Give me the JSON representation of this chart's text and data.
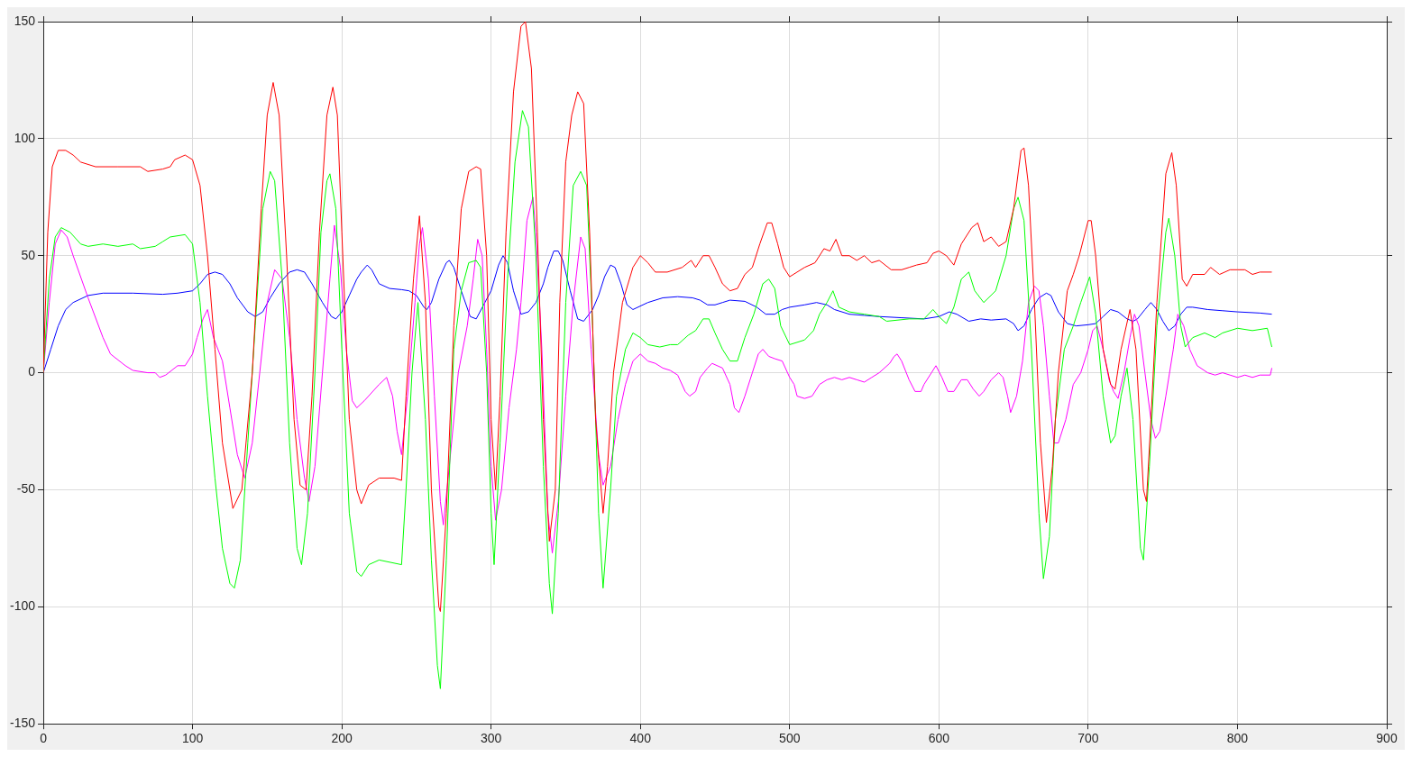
{
  "chart_data": {
    "type": "line",
    "xlim": [
      0,
      900
    ],
    "xticks": [
      0,
      100,
      200,
      300,
      400,
      500,
      600,
      700,
      800,
      900
    ],
    "ylim": [
      -150,
      150
    ],
    "yticks": [
      -150,
      -100,
      -50,
      0,
      50,
      100,
      150
    ],
    "grid": true,
    "legend": false,
    "marker": "none",
    "line_style": "solid",
    "series": [
      {
        "color": "#ff0000",
        "x": [
          0,
          3,
          6,
          10,
          15,
          20,
          25,
          35,
          50,
          65,
          70,
          80,
          85,
          88,
          95,
          100,
          105,
          110,
          115,
          120,
          127,
          133,
          140,
          146,
          150,
          154,
          158,
          163,
          168,
          172,
          176,
          180,
          185,
          190,
          194,
          197,
          200,
          205,
          210,
          213,
          218,
          225,
          235,
          240,
          243,
          248,
          252,
          256,
          260,
          265,
          266,
          270,
          275,
          280,
          285,
          290,
          293,
          297,
          300,
          303,
          306,
          310,
          315,
          320,
          323,
          327,
          331,
          335,
          339,
          343,
          346,
          350,
          354,
          358,
          362,
          366,
          370,
          375,
          378,
          382,
          388,
          395,
          400,
          405,
          410,
          418,
          428,
          434,
          437,
          442,
          446,
          450,
          455,
          460,
          465,
          470,
          475,
          480,
          485,
          488,
          492,
          496,
          500,
          510,
          517,
          523,
          527,
          531,
          535,
          540,
          545,
          550,
          555,
          560,
          568,
          575,
          580,
          585,
          592,
          596,
          600,
          605,
          610,
          615,
          622,
          626,
          630,
          635,
          640,
          645,
          650,
          655,
          657,
          660,
          664,
          668,
          672,
          676,
          680,
          686,
          690,
          694,
          700,
          702,
          705,
          710,
          715,
          718,
          722,
          728,
          732,
          737,
          739,
          742,
          746,
          752,
          756,
          759,
          763,
          766,
          770,
          778,
          782,
          788,
          795,
          800,
          805,
          810,
          815,
          823
        ],
        "values": [
          0,
          60,
          88,
          95,
          95,
          93,
          90,
          88,
          88,
          88,
          86,
          87,
          88,
          91,
          93,
          91,
          80,
          50,
          10,
          -30,
          -58,
          -50,
          0,
          70,
          110,
          124,
          110,
          50,
          -20,
          -48,
          -50,
          -10,
          60,
          110,
          122,
          110,
          60,
          -20,
          -50,
          -56,
          -48,
          -45,
          -45,
          -46,
          -10,
          40,
          67,
          30,
          -50,
          -100,
          -102,
          -60,
          20,
          70,
          86,
          88,
          87,
          50,
          -20,
          -50,
          -10,
          60,
          120,
          148,
          150,
          130,
          60,
          -20,
          -72,
          -50,
          30,
          90,
          110,
          120,
          115,
          60,
          -20,
          -60,
          -40,
          0,
          30,
          45,
          50,
          47,
          43,
          43,
          45,
          48,
          45,
          50,
          50,
          45,
          38,
          35,
          36,
          42,
          45,
          55,
          64,
          64,
          55,
          45,
          41,
          45,
          47,
          53,
          52,
          57,
          50,
          50,
          48,
          50,
          47,
          48,
          44,
          44,
          45,
          46,
          47,
          51,
          52,
          50,
          46,
          55,
          62,
          64,
          56,
          58,
          54,
          56,
          70,
          95,
          96,
          80,
          30,
          -30,
          -64,
          -40,
          0,
          35,
          42,
          50,
          65,
          65,
          50,
          10,
          -5,
          -7,
          10,
          27,
          10,
          -50,
          -55,
          -20,
          30,
          85,
          94,
          80,
          40,
          37,
          42,
          42,
          45,
          42,
          44,
          44,
          44,
          42,
          43,
          43
        ]
      },
      {
        "color": "#00ff00",
        "x": [
          0,
          4,
          8,
          12,
          18,
          25,
          30,
          40,
          50,
          60,
          65,
          75,
          80,
          85,
          95,
          100,
          105,
          110,
          115,
          120,
          125,
          128,
          132,
          137,
          142,
          147,
          152,
          155,
          160,
          165,
          170,
          173,
          177,
          182,
          186,
          190,
          192,
          196,
          200,
          205,
          210,
          213,
          218,
          225,
          240,
          243,
          247,
          251,
          256,
          260,
          264,
          266,
          270,
          275,
          280,
          285,
          290,
          293,
          297,
          300,
          302,
          306,
          311,
          316,
          321,
          325,
          330,
          335,
          339,
          341,
          345,
          350,
          355,
          360,
          364,
          368,
          372,
          375,
          380,
          384,
          390,
          395,
          400,
          405,
          413,
          420,
          425,
          432,
          437,
          442,
          446,
          450,
          455,
          460,
          465,
          470,
          476,
          482,
          486,
          490,
          494,
          500,
          510,
          516,
          520,
          525,
          529,
          533,
          540,
          550,
          560,
          565,
          580,
          590,
          596,
          600,
          605,
          610,
          615,
          620,
          624,
          630,
          638,
          645,
          650,
          653,
          657,
          662,
          667,
          670,
          674,
          678,
          684,
          690,
          695,
          701,
          705,
          710,
          715,
          718,
          722,
          726,
          730,
          735,
          737,
          741,
          746,
          752,
          754,
          758,
          762,
          765,
          770,
          778,
          785,
          790,
          800,
          810,
          820,
          823
        ],
        "values": [
          0,
          40,
          58,
          62,
          60,
          55,
          54,
          55,
          54,
          55,
          53,
          54,
          56,
          58,
          59,
          55,
          30,
          -10,
          -45,
          -75,
          -90,
          -92,
          -80,
          -30,
          20,
          70,
          86,
          82,
          40,
          -30,
          -75,
          -82,
          -60,
          0,
          60,
          82,
          85,
          70,
          10,
          -60,
          -85,
          -87,
          -82,
          -80,
          -82,
          -50,
          0,
          30,
          -20,
          -80,
          -125,
          -135,
          -80,
          10,
          35,
          47,
          48,
          45,
          0,
          -60,
          -82,
          -30,
          40,
          90,
          112,
          105,
          50,
          -40,
          -90,
          -103,
          -60,
          30,
          80,
          86,
          80,
          20,
          -60,
          -92,
          -50,
          -10,
          10,
          17,
          15,
          12,
          11,
          12,
          12,
          16,
          18,
          23,
          23,
          17,
          10,
          5,
          5,
          15,
          25,
          38,
          40,
          36,
          20,
          12,
          14,
          18,
          25,
          30,
          35,
          28,
          26,
          25,
          24,
          22,
          23,
          23,
          27,
          24,
          21,
          28,
          40,
          43,
          35,
          30,
          35,
          50,
          70,
          75,
          65,
          10,
          -60,
          -88,
          -70,
          -20,
          10,
          20,
          30,
          41,
          25,
          -10,
          -30,
          -27,
          -10,
          2,
          -20,
          -75,
          -80,
          -40,
          20,
          60,
          66,
          50,
          20,
          11,
          15,
          17,
          15,
          17,
          19,
          18,
          19,
          11
        ]
      },
      {
        "color": "#ff00ff",
        "x": [
          0,
          4,
          8,
          12,
          16,
          20,
          30,
          40,
          45,
          55,
          60,
          70,
          75,
          78,
          82,
          90,
          95,
          100,
          103,
          107,
          110,
          114,
          120,
          125,
          130,
          135,
          140,
          145,
          150,
          155,
          160,
          165,
          170,
          175,
          178,
          182,
          187,
          192,
          195,
          199,
          203,
          207,
          210,
          215,
          225,
          230,
          234,
          237,
          240,
          244,
          249,
          252,
          254,
          258,
          262,
          266,
          268,
          272,
          278,
          284,
          288,
          291,
          294,
          297,
          300,
          303,
          307,
          312,
          317,
          320,
          324,
          328,
          330,
          334,
          338,
          341,
          345,
          350,
          355,
          360,
          363,
          367,
          372,
          375,
          380,
          385,
          390,
          395,
          400,
          405,
          410,
          415,
          420,
          425,
          430,
          433,
          437,
          440,
          445,
          448,
          455,
          460,
          463,
          466,
          470,
          475,
          479,
          482,
          486,
          490,
          495,
          500,
          503,
          505,
          510,
          515,
          520,
          525,
          530,
          535,
          540,
          545,
          550,
          555,
          560,
          567,
          570,
          572,
          575,
          580,
          584,
          588,
          590,
          595,
          598,
          602,
          606,
          610,
          615,
          619,
          623,
          627,
          630,
          635,
          640,
          643,
          646,
          648,
          652,
          656,
          660,
          664,
          667,
          670,
          674,
          677,
          680,
          685,
          690,
          695,
          700,
          703,
          706,
          710,
          714,
          717,
          720,
          724,
          728,
          731,
          734,
          738,
          742,
          745,
          748,
          752,
          757,
          760,
          764,
          768,
          773,
          780,
          785,
          790,
          795,
          800,
          805,
          810,
          815,
          822,
          823
        ],
        "values": [
          0,
          30,
          55,
          61,
          58,
          50,
          32,
          15,
          8,
          3,
          1,
          0,
          0,
          -2,
          -1,
          3,
          3,
          8,
          15,
          23,
          27,
          15,
          5,
          -15,
          -35,
          -45,
          -30,
          0,
          30,
          44,
          40,
          15,
          -20,
          -45,
          -55,
          -40,
          0,
          40,
          63,
          45,
          10,
          -12,
          -15,
          -12,
          -5,
          -2,
          -10,
          -25,
          -35,
          -10,
          30,
          55,
          62,
          40,
          -10,
          -55,
          -65,
          -40,
          0,
          20,
          40,
          57,
          50,
          10,
          -40,
          -63,
          -50,
          -15,
          10,
          30,
          65,
          75,
          60,
          10,
          -60,
          -77,
          -55,
          -10,
          30,
          58,
          53,
          10,
          -35,
          -48,
          -40,
          -20,
          -5,
          5,
          8,
          5,
          4,
          2,
          1,
          -1,
          -8,
          -10,
          -8,
          -2,
          2,
          4,
          2,
          -5,
          -15,
          -17,
          -10,
          0,
          8,
          10,
          7,
          6,
          5,
          -2,
          -5,
          -10,
          -11,
          -10,
          -5,
          -3,
          -2,
          -3,
          -2,
          -3,
          -4,
          -2,
          0,
          4,
          7,
          8,
          5,
          -3,
          -8,
          -8,
          -5,
          0,
          3,
          -2,
          -8,
          -8,
          -3,
          -3,
          -7,
          -10,
          -8,
          -3,
          0,
          -2,
          -10,
          -17,
          -10,
          5,
          30,
          37,
          35,
          20,
          -10,
          -30,
          -30,
          -20,
          -5,
          0,
          10,
          18,
          20,
          10,
          -3,
          -8,
          -11,
          0,
          15,
          25,
          20,
          0,
          -20,
          -28,
          -25,
          -10,
          10,
          25,
          20,
          10,
          3,
          0,
          -1,
          0,
          -1,
          -2,
          -1,
          -2,
          -1,
          -1,
          2
        ]
      },
      {
        "color": "#0000ff",
        "x": [
          0,
          5,
          10,
          15,
          20,
          30,
          40,
          60,
          80,
          90,
          100,
          105,
          110,
          115,
          120,
          125,
          130,
          137,
          142,
          147,
          152,
          158,
          165,
          170,
          175,
          180,
          187,
          193,
          196,
          200,
          205,
          210,
          213,
          217,
          220,
          225,
          232,
          240,
          245,
          250,
          255,
          257,
          260,
          265,
          270,
          272,
          275,
          280,
          286,
          290,
          295,
          300,
          305,
          308,
          311,
          315,
          320,
          325,
          330,
          335,
          338,
          342,
          345,
          348,
          353,
          358,
          362,
          368,
          372,
          376,
          380,
          383,
          387,
          391,
          395,
          405,
          415,
          425,
          435,
          440,
          445,
          450,
          455,
          460,
          470,
          478,
          484,
          490,
          495,
          500,
          510,
          518,
          525,
          530,
          540,
          550,
          560,
          575,
          590,
          600,
          607,
          612,
          620,
          628,
          635,
          645,
          650,
          653,
          657,
          662,
          667,
          672,
          675,
          680,
          686,
          692,
          700,
          705,
          710,
          715,
          720,
          726,
          730,
          733,
          738,
          742,
          746,
          750,
          754,
          758,
          762,
          766,
          770,
          780,
          790,
          800,
          815,
          823
        ],
        "values": [
          0,
          10,
          20,
          27,
          30,
          33,
          34,
          34,
          33.5,
          34,
          35,
          38,
          42,
          43,
          42,
          38,
          32,
          26,
          24,
          26,
          32,
          38,
          43,
          44,
          43,
          38,
          30,
          24,
          23,
          26,
          33,
          40,
          43,
          46,
          44,
          38,
          36,
          35.5,
          35,
          33,
          28,
          27,
          30,
          40,
          47,
          48,
          45,
          35,
          24,
          23,
          29,
          35,
          46,
          50,
          47,
          35,
          25,
          26,
          30,
          38,
          45,
          52,
          52,
          48,
          35,
          23,
          22,
          27,
          33,
          41,
          46,
          45,
          38,
          29,
          27,
          30,
          32,
          32.5,
          32,
          31,
          29,
          29,
          30,
          31,
          30.5,
          28,
          25,
          25,
          27,
          28,
          29,
          30,
          29,
          27,
          25,
          24.5,
          24,
          23.5,
          23,
          24,
          26,
          25,
          22,
          23,
          22.5,
          23,
          21,
          18,
          20,
          27,
          32,
          34,
          33,
          26,
          21,
          20,
          20.5,
          21,
          24,
          27,
          26,
          23,
          22,
          23,
          27,
          30,
          27,
          22,
          18,
          20,
          25,
          28,
          28,
          27,
          26.5,
          26,
          25.5,
          25
        ]
      }
    ]
  }
}
